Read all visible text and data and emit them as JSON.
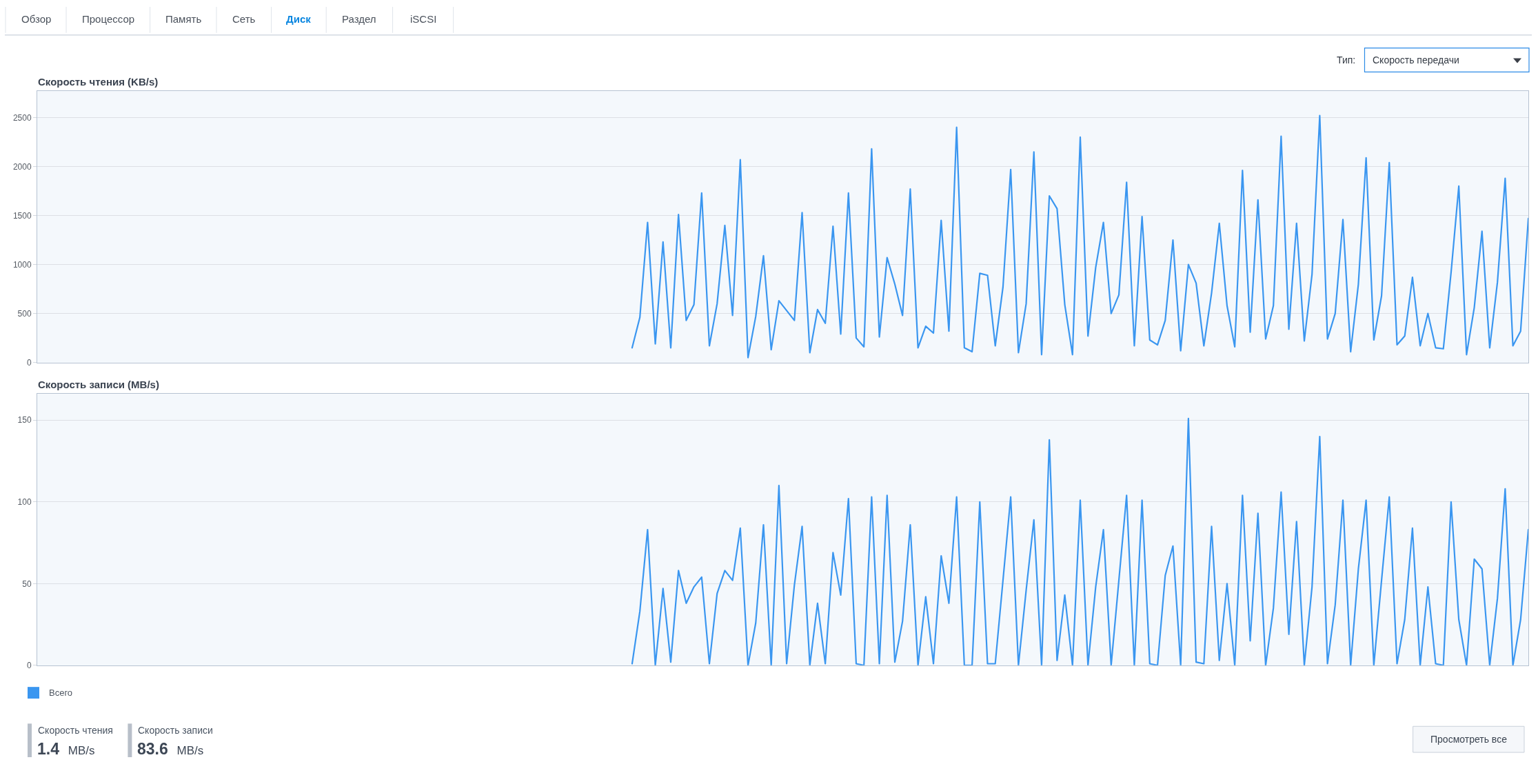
{
  "chart_data": [
    {
      "type": "other",
      "categories": [
        "Обзор",
        "Процессор",
        "Память",
        "Сеть",
        "Диск",
        "Раздел",
        "iSCSI"
      ],
      "colors": [
        "#4b525c",
        "#4b525c",
        "#4b525c",
        "#4b525c",
        "#0a86e0",
        "#4b525c",
        "#4b525c"
      ],
      "annotations": [
        "Тип:",
        "Скорость передачи"
      ]
    },
    {
      "type": "line",
      "title": "Скорость чтения (KB/s)",
      "categories": [
        null,
        null,
        null,
        null,
        null,
        null,
        null,
        null,
        null,
        null,
        null,
        null,
        null,
        null,
        null,
        null,
        null,
        null,
        null,
        null,
        null,
        null,
        null,
        null,
        null,
        null,
        null,
        null,
        null,
        null,
        null,
        null,
        null,
        null,
        null,
        null,
        null,
        null,
        null,
        null,
        null,
        null,
        null,
        null,
        null,
        null,
        null,
        null,
        null,
        null,
        null,
        null,
        null,
        null,
        null,
        null,
        null,
        null,
        null,
        null,
        null,
        null,
        null,
        null,
        null,
        null,
        null,
        null,
        null,
        null,
        null,
        null,
        null,
        null,
        null,
        null,
        null,
        null,
        null,
        null,
        null,
        null,
        null,
        null,
        null,
        null,
        null,
        null,
        null,
        null,
        null,
        null,
        null,
        null,
        null,
        null,
        null,
        null,
        null,
        null,
        null,
        null,
        null,
        null,
        null,
        null,
        null,
        null,
        null,
        null,
        null,
        null,
        null,
        null,
        null,
        null,
        null,
        null,
        null,
        null,
        null,
        null,
        null,
        null,
        null,
        null,
        null,
        null,
        null,
        null,
        null,
        null,
        null,
        null,
        null,
        null,
        null,
        null,
        null,
        null,
        null,
        null,
        null,
        null,
        null,
        null,
        null,
        null,
        null,
        null,
        null,
        null,
        null,
        null,
        null,
        null,
        null,
        null,
        null,
        null,
        null,
        null,
        null,
        null,
        null,
        null,
        null,
        null,
        null,
        null,
        null,
        null,
        null,
        null,
        null,
        null,
        null,
        null,
        null,
        null,
        null,
        null,
        null,
        null,
        null,
        null,
        null,
        null,
        null,
        null,
        null,
        null,
        null,
        null
      ],
      "series": [
        {
          "color": "#3a96f0",
          "values": [
            null,
            null,
            null,
            null,
            null,
            null,
            null,
            null,
            null,
            null,
            null,
            null,
            null,
            null,
            null,
            null,
            null,
            null,
            null,
            null,
            null,
            null,
            null,
            null,
            null,
            null,
            null,
            null,
            null,
            null,
            null,
            null,
            null,
            null,
            null,
            null,
            null,
            null,
            null,
            null,
            null,
            null,
            null,
            null,
            null,
            null,
            null,
            null,
            null,
            null,
            null,
            null,
            null,
            null,
            null,
            null,
            null,
            null,
            null,
            null,
            null,
            null,
            null,
            null,
            null,
            null,
            null,
            null,
            null,
            null,
            null,
            null,
            null,
            null,
            null,
            null,
            null,
            150,
            460,
            1430,
            190,
            1230,
            150,
            1510,
            430,
            590,
            1730,
            170,
            600,
            1400,
            480,
            2070,
            50,
            470,
            1090,
            130,
            630,
            530,
            430,
            1530,
            100,
            540,
            400,
            1390,
            290,
            1730,
            250,
            160,
            2180,
            260,
            1070,
            800,
            480,
            1770,
            150,
            370,
            300,
            1450,
            320,
            2400,
            150,
            110,
            910,
            890,
            170,
            770,
            1970,
            100,
            600,
            2150,
            80,
            1700,
            1570,
            590,
            80,
            2300,
            270,
            970,
            1430,
            500,
            690,
            1840,
            170,
            1490,
            230,
            180,
            430,
            1250,
            120,
            1000,
            810,
            170,
            710,
            1420,
            580,
            160,
            1960,
            310,
            1660,
            240,
            580,
            2310,
            340,
            1420,
            220,
            900,
            2520,
            240,
            500,
            1460,
            110,
            800,
            2090,
            230,
            680,
            2040,
            180,
            270,
            870,
            170,
            500,
            150,
            140,
            920,
            1800,
            80,
            560,
            1340,
            150,
            820,
            1880,
            170,
            320,
            1470
          ]
        }
      ],
      "ylim": [
        0,
        2770
      ],
      "yticks": [
        0,
        500,
        1000,
        1500,
        2000,
        2500
      ],
      "grid": "y"
    },
    {
      "type": "line",
      "title": "Скорость записи (MB/s)",
      "categories": [
        null,
        null,
        null,
        null,
        null,
        null,
        null,
        null,
        null,
        null,
        null,
        null,
        null,
        null,
        null,
        null,
        null,
        null,
        null,
        null,
        null,
        null,
        null,
        null,
        null,
        null,
        null,
        null,
        null,
        null,
        null,
        null,
        null,
        null,
        null,
        null,
        null,
        null,
        null,
        null,
        null,
        null,
        null,
        null,
        null,
        null,
        null,
        null,
        null,
        null,
        null,
        null,
        null,
        null,
        null,
        null,
        null,
        null,
        null,
        null,
        null,
        null,
        null,
        null,
        null,
        null,
        null,
        null,
        null,
        null,
        null,
        null,
        null,
        null,
        null,
        null,
        null,
        null,
        null,
        null,
        null,
        null,
        null,
        null,
        null,
        null,
        null,
        null,
        null,
        null,
        null,
        null,
        null,
        null,
        null,
        null,
        null,
        null,
        null,
        null,
        null,
        null,
        null,
        null,
        null,
        null,
        null,
        null,
        null,
        null,
        null,
        null,
        null,
        null,
        null,
        null,
        null,
        null,
        null,
        null,
        null,
        null,
        null,
        null,
        null,
        null,
        null,
        null,
        null,
        null,
        null,
        null,
        null,
        null,
        null,
        null,
        null,
        null,
        null,
        null,
        null,
        null,
        null,
        null,
        null,
        null,
        null,
        null,
        null,
        null,
        null,
        null,
        null,
        null,
        null,
        null,
        null,
        null,
        null,
        null,
        null,
        null,
        null,
        null,
        null,
        null,
        null,
        null,
        null,
        null,
        null,
        null,
        null,
        null,
        null,
        null,
        null,
        null,
        null,
        null,
        null,
        null,
        null,
        null,
        null,
        null,
        null,
        null,
        null,
        null,
        null,
        null,
        null,
        null
      ],
      "series": [
        {
          "name": "Всего",
          "color": "#3a96f0",
          "values": [
            null,
            null,
            null,
            null,
            null,
            null,
            null,
            null,
            null,
            null,
            null,
            null,
            null,
            null,
            null,
            null,
            null,
            null,
            null,
            null,
            null,
            null,
            null,
            null,
            null,
            null,
            null,
            null,
            null,
            null,
            null,
            null,
            null,
            null,
            null,
            null,
            null,
            null,
            null,
            null,
            null,
            null,
            null,
            null,
            null,
            null,
            null,
            null,
            null,
            null,
            null,
            null,
            null,
            null,
            null,
            null,
            null,
            null,
            null,
            null,
            null,
            null,
            null,
            null,
            null,
            null,
            null,
            null,
            null,
            null,
            null,
            null,
            null,
            null,
            null,
            null,
            null,
            1,
            33,
            83,
            0,
            47,
            2,
            58,
            38,
            48,
            54,
            1,
            44,
            58,
            52,
            84,
            0,
            26,
            86,
            0,
            110,
            1,
            49,
            85,
            0,
            38,
            1,
            69,
            43,
            102,
            1,
            0,
            103,
            1,
            104,
            2,
            27,
            86,
            0,
            42,
            1,
            67,
            38,
            103,
            0,
            0,
            100,
            1,
            1,
            52,
            103,
            0,
            46,
            89,
            0,
            138,
            3,
            43,
            0,
            101,
            0,
            48,
            83,
            0,
            52,
            104,
            0,
            101,
            1,
            0,
            55,
            73,
            0,
            151,
            2,
            1,
            85,
            3,
            50,
            0,
            104,
            15,
            93,
            0,
            35,
            106,
            19,
            88,
            0,
            48,
            140,
            1,
            37,
            101,
            0,
            59,
            101,
            0,
            52,
            103,
            1,
            28,
            84,
            0,
            48,
            1,
            0,
            100,
            28,
            0,
            65,
            59,
            0,
            41,
            108,
            0,
            28,
            83
          ]
        }
      ],
      "ylim": [
        0,
        166
      ],
      "yticks": [
        0,
        50,
        100,
        150
      ],
      "grid": "y",
      "legend": "bottom left"
    },
    {
      "type": "other",
      "annotations": [
        "Скорость чтения",
        "1.4 MB/s",
        "Скорость записи",
        "83.6 MB/s",
        "Просмотреть все"
      ]
    }
  ]
}
